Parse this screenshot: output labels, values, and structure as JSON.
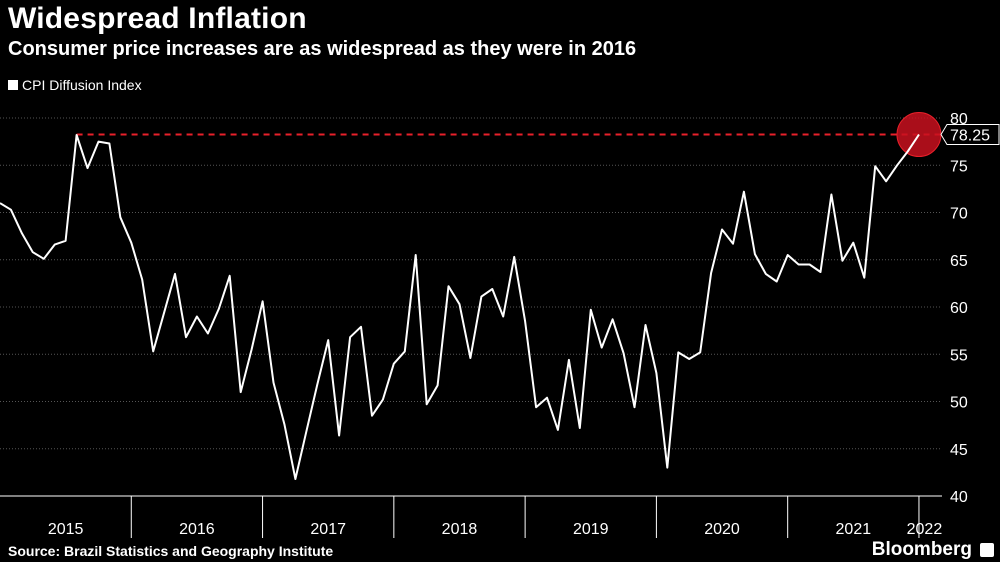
{
  "header": {
    "title": "Widespread Inflation",
    "subtitle": "Consumer price increases are as widespread as they were in 2016"
  },
  "footer": {
    "source": "Source: Brazil Statistics and Geography Institute",
    "brand": "Bloomberg"
  },
  "colors": {
    "line": "#ffffff",
    "reference": "#e8202a",
    "marker": "#c8101e",
    "grid": "#555555"
  },
  "chart_data": {
    "type": "line",
    "title": "Widespread Inflation",
    "subtitle": "Consumer price increases are as widespread as they were in 2016",
    "xlabel": "",
    "ylabel": "",
    "ylim": [
      40,
      80
    ],
    "yticks": [
      40,
      45,
      50,
      55,
      60,
      65,
      70,
      75,
      80
    ],
    "x_categories": [
      "2015",
      "2016",
      "2017",
      "2018",
      "2019",
      "2020",
      "2021",
      "2022"
    ],
    "series": [
      {
        "name": "CPI Diffusion Index",
        "start": "2015-01",
        "frequency": "monthly",
        "values": [
          71.0,
          70.3,
          67.8,
          65.8,
          65.1,
          66.6,
          67.0,
          78.2,
          74.7,
          77.5,
          77.3,
          69.5,
          66.8,
          62.9,
          55.3,
          59.4,
          63.5,
          56.8,
          59.0,
          57.2,
          59.8,
          63.3,
          51.0,
          55.5,
          60.6,
          52.0,
          47.6,
          41.8,
          46.8,
          51.8,
          56.5,
          46.4,
          56.8,
          57.9,
          48.5,
          50.2,
          54.0,
          55.3,
          65.5,
          49.7,
          51.7,
          62.2,
          60.3,
          54.6,
          61.1,
          61.9,
          59.0,
          65.3,
          58.5,
          49.4,
          50.4,
          47.0,
          54.4,
          47.2,
          59.7,
          55.7,
          58.7,
          55.1,
          49.4,
          58.1,
          53.0,
          43.0,
          55.2,
          54.5,
          55.2,
          63.6,
          68.2,
          66.7,
          72.2,
          65.6,
          63.5,
          62.7,
          65.5,
          64.5,
          64.5,
          63.7,
          71.9,
          64.9,
          66.8,
          63.1,
          74.9,
          73.3,
          75.0,
          76.5,
          78.25
        ]
      }
    ],
    "reference_line": {
      "value": 78.25,
      "style": "dashed"
    },
    "last_value_label": "78.25",
    "highlight": "last point circled"
  }
}
